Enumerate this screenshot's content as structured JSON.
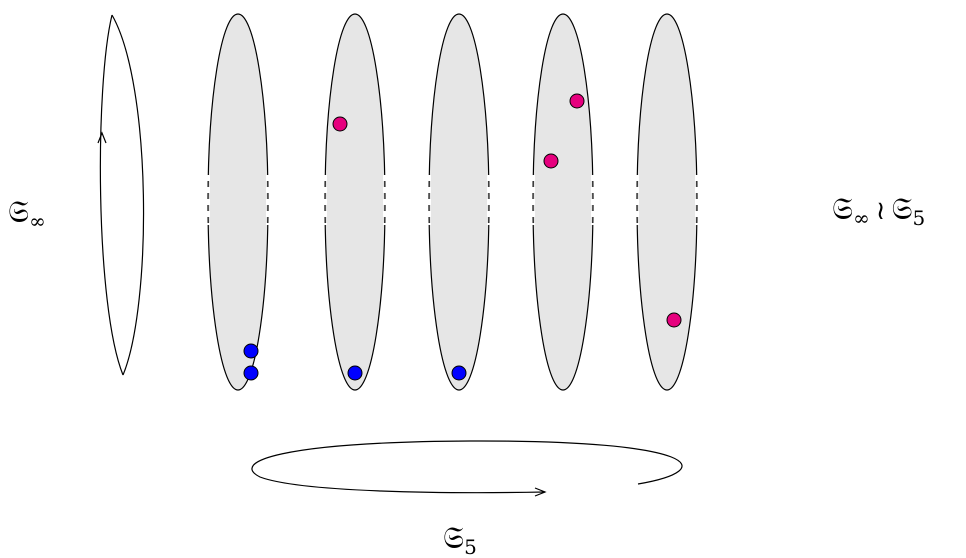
{
  "labels": {
    "left": {
      "base": "𝔖",
      "sub": "∞"
    },
    "right": {
      "base": "𝔖",
      "sub": "∞",
      "wreath": "≀",
      "base2": "𝔖",
      "sub2": "5"
    },
    "bottom": {
      "base": "𝔖",
      "sub": "5"
    }
  },
  "colors": {
    "ellipse_fill": "#e6e6e6",
    "stroke": "#000000",
    "blue_dot": "#0000ff",
    "magenta_dot": "#e6007e"
  },
  "columns": [
    {
      "name": "column-1",
      "blue_dots": 2,
      "magenta_dots": 0
    },
    {
      "name": "column-2",
      "blue_dots": 1,
      "magenta_dots": 1
    },
    {
      "name": "column-3",
      "blue_dots": 1,
      "magenta_dots": 0
    },
    {
      "name": "column-4",
      "blue_dots": 0,
      "magenta_dots": 2
    },
    {
      "name": "column-5",
      "blue_dots": 0,
      "magenta_dots": 1
    }
  ]
}
